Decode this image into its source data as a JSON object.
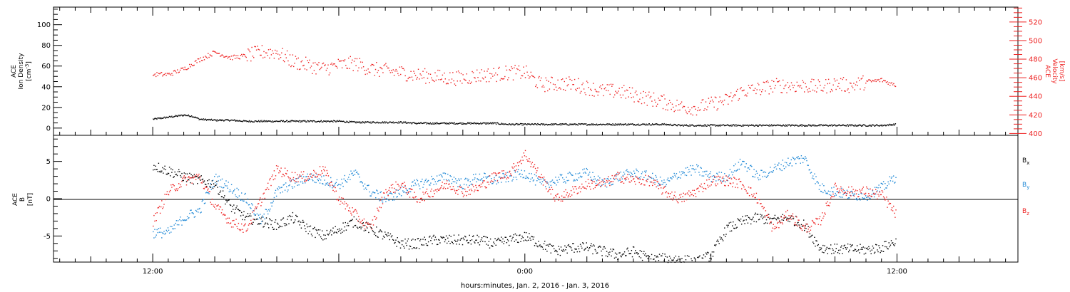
{
  "chart_data": [
    {
      "type": "scatter",
      "panel": "ace-plasma",
      "ylabel_left": {
        "line1": "ACE",
        "line2": "Ion Density",
        "unit": "[cm",
        "unit_sup": "-3",
        "unit_end": "]"
      },
      "ylabel_right": {
        "line1": "ACE",
        "line2": "Velocity",
        "unit": "[km/s]"
      },
      "ylim_left": [
        -7,
        117
      ],
      "ylim_right": [
        398,
        536
      ],
      "yticks_left": [
        "0",
        "20",
        "40",
        "60",
        "80",
        "100"
      ],
      "yticks_right": [
        "400",
        "420",
        "440",
        "460",
        "480",
        "500",
        "520"
      ],
      "colors": {
        "density": "#000000",
        "velocity": "#ee2222"
      },
      "series": [
        {
          "axis": "left",
          "color": "#000000",
          "x": [
            0,
            0.5,
            1,
            1.5,
            2,
            2.5,
            3,
            4,
            5,
            6,
            7,
            8,
            9,
            10,
            11,
            12,
            13,
            14,
            15,
            16,
            17,
            18,
            19,
            20,
            21,
            22,
            23,
            24,
            25,
            26,
            27,
            28,
            29,
            30,
            31,
            32,
            33,
            34,
            35,
            36,
            37,
            38,
            39,
            40,
            41,
            42,
            43,
            44,
            45,
            46,
            47,
            47.9
          ],
          "values": [
            9,
            10,
            11,
            12,
            13,
            12,
            9,
            8,
            8,
            7,
            7,
            7,
            7,
            7,
            7,
            7,
            6,
            6,
            6,
            6,
            5,
            5,
            5,
            5,
            5,
            5,
            4,
            4,
            4,
            4,
            4,
            4,
            4,
            4,
            4,
            4,
            4,
            3,
            3,
            3,
            3,
            3,
            3,
            3,
            3,
            3,
            3,
            3,
            3,
            3,
            3,
            4
          ]
        },
        {
          "axis": "right",
          "color": "#ee2222",
          "x": [
            0,
            1,
            2,
            3,
            4,
            5,
            6,
            7,
            8,
            9,
            10,
            11,
            12,
            13,
            14,
            15,
            16,
            17,
            18,
            19,
            20,
            21,
            22,
            23,
            24,
            25,
            26,
            27,
            28,
            29,
            30,
            31,
            32,
            33,
            34,
            35,
            36,
            37,
            38,
            39,
            40,
            41,
            42,
            43,
            44,
            45,
            46,
            47,
            47.9
          ],
          "values": [
            464,
            464,
            470,
            480,
            488,
            482,
            484,
            488,
            488,
            478,
            474,
            470,
            474,
            476,
            470,
            468,
            466,
            463,
            462,
            460,
            460,
            463,
            464,
            466,
            466,
            453,
            454,
            454,
            450,
            446,
            446,
            442,
            438,
            434,
            429,
            428,
            432,
            436,
            446,
            448,
            452,
            452,
            452,
            450,
            454,
            452,
            456,
            458,
            452
          ]
        }
      ]
    },
    {
      "type": "scatter",
      "panel": "ace-magnetic-field",
      "ylabel_left": {
        "line1": "ACE",
        "line2": "B",
        "unit": "[nT]"
      },
      "ylim": [
        -8.5,
        8.5
      ],
      "yticks": [
        "-5",
        "0",
        "5"
      ],
      "legend": [
        "B",
        "B",
        "B"
      ],
      "legend_sub": [
        "x",
        "y",
        "z"
      ],
      "colors": {
        "bx": "#000000",
        "by": "#1e88d6",
        "bz": "#ee2222"
      },
      "series": [
        {
          "name": "Bx",
          "color": "#000000",
          "x": [
            0,
            1,
            2,
            3,
            4,
            5,
            6,
            7,
            8,
            9,
            10,
            11,
            12,
            13,
            14,
            15,
            16,
            17,
            18,
            19,
            20,
            21,
            22,
            23,
            24,
            25,
            26,
            27,
            28,
            29,
            30,
            31,
            32,
            33,
            34,
            35,
            36,
            37,
            38,
            39,
            40,
            41,
            42,
            43,
            44,
            45,
            46,
            47,
            47.9
          ],
          "values": [
            4.5,
            3.8,
            3,
            2.5,
            2,
            -1,
            -2.5,
            -3,
            -3.5,
            -2.5,
            -4,
            -5,
            -4,
            -3,
            -4,
            -5,
            -6,
            -6,
            -5.5,
            -5.5,
            -5.5,
            -5.5,
            -6,
            -5.5,
            -5,
            -6,
            -7,
            -6.5,
            -6.5,
            -7,
            -7.5,
            -7,
            -8,
            -8,
            -8,
            -8.5,
            -7.5,
            -4,
            -3,
            -2.5,
            -2.8,
            -2.5,
            -3.5,
            -6.5,
            -6.7,
            -6.7,
            -6.8,
            -6.5,
            -5.7
          ]
        },
        {
          "name": "By",
          "color": "#1e88d6",
          "x": [
            0,
            1,
            2,
            3,
            4,
            5,
            6,
            7,
            8,
            9,
            10,
            11,
            12,
            13,
            14,
            15,
            16,
            17,
            18,
            19,
            20,
            21,
            22,
            23,
            24,
            25,
            26,
            27,
            28,
            29,
            30,
            31,
            32,
            33,
            34,
            35,
            36,
            37,
            38,
            39,
            40,
            41,
            42,
            43,
            44,
            45,
            46,
            47,
            47.9
          ],
          "values": [
            -4.5,
            -4.5,
            -2.5,
            -1.5,
            2.8,
            1.5,
            0,
            -3,
            1,
            2,
            3,
            2.5,
            2,
            3.5,
            1,
            0,
            1,
            2,
            2.5,
            3,
            2,
            3,
            2.5,
            3,
            3.5,
            2,
            2.5,
            3,
            3.5,
            2,
            3,
            3.5,
            3,
            2,
            3.5,
            4,
            3,
            3,
            5,
            3,
            4,
            5,
            5.5,
            1.5,
            1,
            0.5,
            0.5,
            1.5,
            3
          ]
        },
        {
          "name": "Bz",
          "color": "#ee2222",
          "x": [
            0,
            1,
            2,
            3,
            4,
            5,
            6,
            7,
            8,
            9,
            10,
            11,
            12,
            13,
            14,
            15,
            16,
            17,
            18,
            19,
            20,
            21,
            22,
            23,
            24,
            25,
            26,
            27,
            28,
            29,
            30,
            31,
            32,
            33,
            34,
            35,
            36,
            37,
            38,
            39,
            40,
            41,
            42,
            43,
            44,
            45,
            46,
            47,
            47.9
          ],
          "values": [
            -3,
            1,
            2.5,
            3,
            -1,
            -3,
            -4,
            0,
            4,
            3,
            3,
            4,
            0,
            -2,
            -4,
            1,
            2,
            0,
            1,
            2,
            1,
            1.5,
            3,
            3.5,
            6,
            3,
            0,
            1,
            2,
            2,
            3,
            2.5,
            2.5,
            1,
            0,
            1,
            2.5,
            2.5,
            2,
            0,
            -4,
            -2,
            -4,
            -3,
            1.5,
            1,
            1,
            0.5,
            -2
          ]
        }
      ]
    }
  ],
  "xaxis": {
    "xlim": [
      -6.4,
      55.8
    ],
    "tick_labels": [
      {
        "x": 0,
        "label": "12:00"
      },
      {
        "x": 24,
        "label": "0:00"
      },
      {
        "x": 48,
        "label": "12:00"
      }
    ],
    "title": "hours:minutes, Jan.  2, 2016 - Jan.  3, 2016"
  }
}
